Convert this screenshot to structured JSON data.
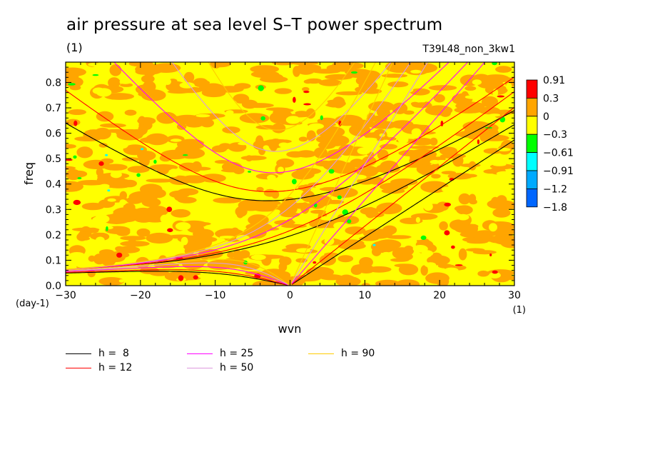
{
  "chart_data": {
    "type": "heatmap",
    "title": "air pressure at sea level S–T power spectrum",
    "subtitle": "(1)",
    "run_name": "T39L48_non_3kw1",
    "xlabel": "wvn",
    "ylabel": "freq",
    "x_unit": "(1)",
    "y_unit": "(day-1)",
    "xlim": [
      -30,
      30
    ],
    "ylim": [
      0.0,
      0.88
    ],
    "x_ticks": [
      "−30",
      "−20",
      "−10",
      "0",
      "10",
      "20",
      "30"
    ],
    "x_tick_values": [
      -30,
      -20,
      -10,
      0,
      10,
      20,
      30
    ],
    "y_ticks": [
      "0.0",
      "0.1",
      "0.2",
      "0.3",
      "0.4",
      "0.5",
      "0.6",
      "0.7",
      "0.8"
    ],
    "y_tick_values": [
      0.0,
      0.1,
      0.2,
      0.3,
      0.4,
      0.5,
      0.6,
      0.7,
      0.8
    ],
    "colorbar": {
      "labels": [
        "0.91",
        "0.3",
        "0",
        "−0.3",
        "−0.61",
        "−0.91",
        "−1.2",
        "−1.8"
      ],
      "colors": [
        "#ff0000",
        "#ffa500",
        "#ffff00",
        "#00ff00",
        "#00ffff",
        "#00aaff",
        "#0066ff"
      ]
    },
    "field_colors": {
      "high": "#ffa500",
      "low": "#ffff00",
      "peak": "#ff0000",
      "dip": "#00ff00",
      "deep": "#00ffff"
    },
    "dispersion_curves": [
      {
        "name": "h =  8",
        "h": 8,
        "color": "#000000"
      },
      {
        "name": "h = 12",
        "h": 12,
        "color": "#ff0000"
      },
      {
        "name": "h = 25",
        "h": 25,
        "color": "#ff00ff"
      },
      {
        "name": "h = 50",
        "h": 50,
        "color": "#dd99dd"
      },
      {
        "name": "h = 90",
        "h": 90,
        "color": "#ffcc00"
      }
    ]
  }
}
